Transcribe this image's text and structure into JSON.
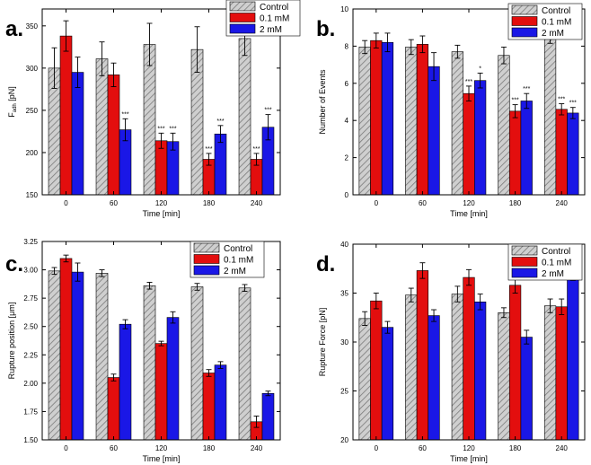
{
  "chart_data": [
    {
      "type": "bar",
      "panel_label": "a.",
      "xlabel": "Time [min]",
      "ylabel_main": "F",
      "ylabel_sub": "adh",
      "ylabel_unit": " [pN]",
      "ylim": [
        150,
        370
      ],
      "yticks": [
        150,
        200,
        250,
        300,
        350
      ],
      "categories": [
        "0",
        "60",
        "120",
        "180",
        "240"
      ],
      "legend": "top-right",
      "series": [
        {
          "name": "Control",
          "values": [
            300,
            311,
            328,
            322,
            335
          ],
          "errors": [
            24,
            20,
            25,
            27,
            20
          ],
          "sig": [
            "",
            "",
            "",
            "",
            ""
          ]
        },
        {
          "name": "0.1 mM",
          "values": [
            338,
            292,
            214,
            192,
            192
          ],
          "errors": [
            18,
            14,
            9,
            7,
            7
          ],
          "sig": [
            "",
            "",
            "***",
            "***",
            "***"
          ]
        },
        {
          "name": "2 mM",
          "values": [
            295,
            227,
            213,
            222,
            230
          ],
          "errors": [
            18,
            13,
            10,
            10,
            15
          ],
          "sig": [
            "",
            "***",
            "***",
            "***",
            "***"
          ]
        }
      ]
    },
    {
      "type": "bar",
      "panel_label": "b.",
      "xlabel": "Time [min]",
      "ylabel_main": "Number of Events",
      "ylabel_sub": "",
      "ylabel_unit": "",
      "ylim": [
        0,
        10
      ],
      "yticks": [
        0,
        2,
        4,
        6,
        8,
        10
      ],
      "categories": [
        "0",
        "60",
        "120",
        "180",
        "240"
      ],
      "legend": "top-right",
      "series": [
        {
          "name": "Control",
          "values": [
            7.95,
            7.95,
            7.7,
            7.5,
            8.45
          ],
          "errors": [
            0.35,
            0.4,
            0.35,
            0.45,
            0.3
          ],
          "sig": [
            "",
            "",
            "",
            "",
            ""
          ]
        },
        {
          "name": "0.1 mM",
          "values": [
            8.3,
            8.1,
            5.45,
            4.5,
            4.6
          ],
          "errors": [
            0.4,
            0.45,
            0.4,
            0.35,
            0.3
          ],
          "sig": [
            "",
            "",
            "***",
            "***",
            "***"
          ]
        },
        {
          "name": "2 mM",
          "values": [
            8.2,
            6.9,
            6.15,
            5.05,
            4.4
          ],
          "errors": [
            0.5,
            0.75,
            0.4,
            0.4,
            0.3
          ],
          "sig": [
            "",
            "",
            "*",
            "***",
            "***"
          ]
        }
      ]
    },
    {
      "type": "bar",
      "panel_label": "c.",
      "xlabel": "Time [min]",
      "ylabel_main": "Rupture position [μm]",
      "ylabel_sub": "",
      "ylabel_unit": "",
      "ylim": [
        1.5,
        3.25
      ],
      "yticks": [
        1.5,
        1.75,
        2.0,
        2.25,
        2.5,
        2.75,
        3.0,
        3.25
      ],
      "ytick_labels": [
        "1.50",
        "1.75",
        "2.00",
        "2.25",
        "2.50",
        "2.75",
        "3.00",
        "3.25"
      ],
      "categories": [
        "0",
        "60",
        "120",
        "180",
        "240"
      ],
      "legend": "top-right",
      "series": [
        {
          "name": "Control",
          "values": [
            2.99,
            2.97,
            2.86,
            2.85,
            2.84
          ],
          "errors": [
            0.03,
            0.03,
            0.03,
            0.03,
            0.03
          ],
          "sig": [
            "",
            "",
            "",
            "",
            ""
          ]
        },
        {
          "name": "0.1 mM",
          "values": [
            3.1,
            2.05,
            2.35,
            2.09,
            1.66
          ],
          "errors": [
            0.03,
            0.03,
            0.02,
            0.03,
            0.05
          ],
          "sig": [
            "",
            "",
            "",
            "",
            ""
          ]
        },
        {
          "name": "2 mM",
          "values": [
            2.98,
            2.52,
            2.58,
            2.16,
            1.91
          ],
          "errors": [
            0.08,
            0.04,
            0.05,
            0.03,
            0.02
          ],
          "sig": [
            "",
            "",
            "",
            "",
            ""
          ]
        }
      ]
    },
    {
      "type": "bar",
      "panel_label": "d.",
      "xlabel": "Time [min]",
      "ylabel_main": "Rupture Force [pN]",
      "ylabel_sub": "",
      "ylabel_unit": "",
      "ylim": [
        20,
        40
      ],
      "yticks": [
        20,
        25,
        30,
        35,
        40
      ],
      "categories": [
        "0",
        "60",
        "120",
        "180",
        "240"
      ],
      "legend": "top-right",
      "series": [
        {
          "name": "Control",
          "values": [
            32.4,
            34.8,
            34.9,
            33.0,
            33.7
          ],
          "errors": [
            0.7,
            0.7,
            0.8,
            0.5,
            0.7
          ],
          "sig": [
            "",
            "",
            "",
            "",
            ""
          ]
        },
        {
          "name": "0.1 mM",
          "values": [
            34.2,
            37.3,
            36.6,
            35.8,
            33.6
          ],
          "errors": [
            0.8,
            0.8,
            0.8,
            0.8,
            0.8
          ],
          "sig": [
            "",
            "",
            "",
            "",
            ""
          ]
        },
        {
          "name": "2 mM",
          "values": [
            31.5,
            32.7,
            34.1,
            30.5,
            37.1
          ],
          "errors": [
            0.6,
            0.6,
            0.8,
            0.7,
            0.8
          ],
          "sig": [
            "",
            "",
            "",
            "",
            ""
          ]
        }
      ]
    }
  ],
  "colors": {
    "control_fill": "#cfcfcf",
    "control_hatch": "#7a7a7a",
    "low_dose": "#e30e0e",
    "high_dose": "#1a17e6",
    "axis": "#000000"
  }
}
